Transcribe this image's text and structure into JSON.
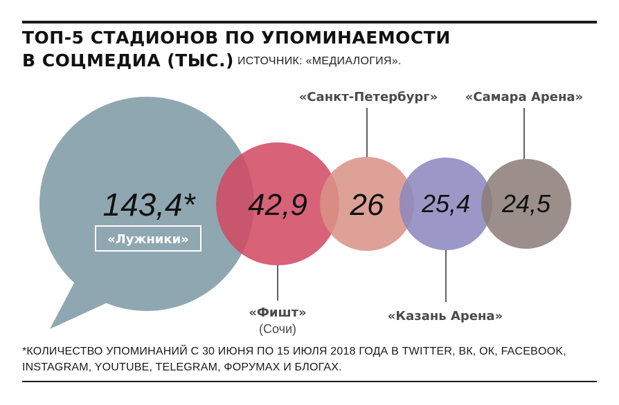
{
  "header": {
    "title_line1": "ТОП-5 СТАДИОНОВ ПО УПОМИНАЕМОСТИ",
    "title_line2": "В СОЦМЕДИА (ТЫС.)",
    "source": "ИСТОЧНИК: «МЕДИАЛОГИЯ»."
  },
  "footnote": "*КОЛИЧЕСТВО УПОМИНАНИЙ С 30 ИЮНЯ ПО 15 ИЮЛЯ 2018 ГОДА В TWITTER, ВК, ОК, FACEBOOK, INSTAGRAM, YOUTUBE, TELEGRAM, ФОРУМАХ И БЛОГАХ.",
  "chart_data": {
    "type": "bubble",
    "series": [
      {
        "name": "«Лужники»",
        "value": 143.4,
        "value_label": "143,4",
        "marker": "*",
        "color": "#8fa7b0",
        "label_sub": ""
      },
      {
        "name": "«Фишт»",
        "value": 42.9,
        "value_label": "42,9",
        "color": "#d24862",
        "label_sub": "(Сочи)"
      },
      {
        "name": "«Санкт-Петербург»",
        "value": 26,
        "value_label": "26",
        "color": "#d99186",
        "label_sub": ""
      },
      {
        "name": "«Казань Арена»",
        "value": 25.4,
        "value_label": "25,4",
        "color": "#8a87be",
        "label_sub": ""
      },
      {
        "name": "«Самара Арена»",
        "value": 24.5,
        "value_label": "24,5",
        "color": "#8c7c77",
        "label_sub": ""
      }
    ]
  }
}
